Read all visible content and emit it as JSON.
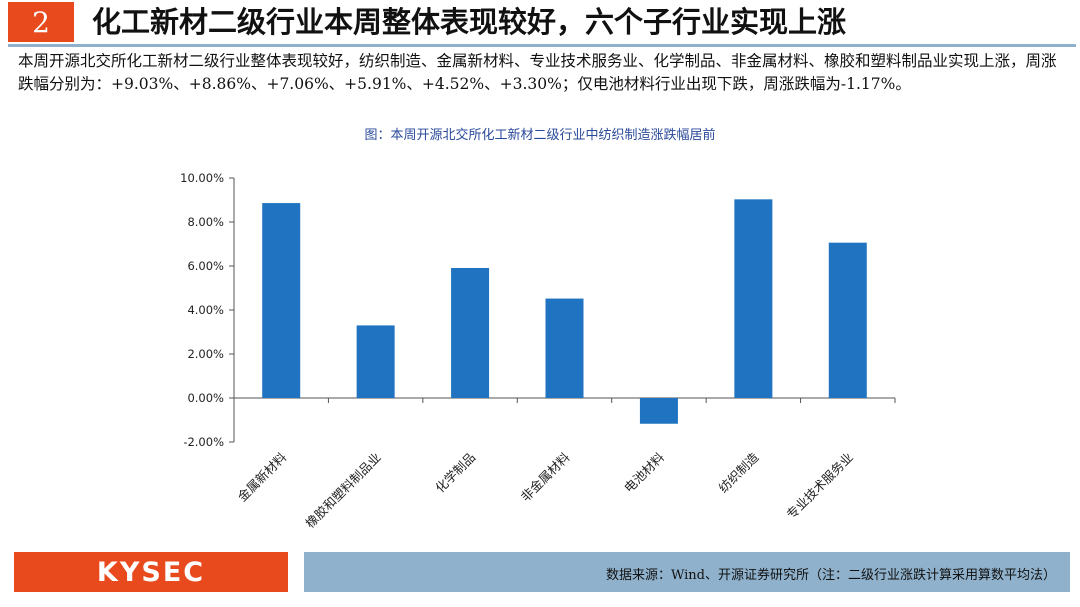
{
  "header": {
    "number": "2",
    "title": "化工新材二级行业本周整体表现较好，六个子行业实现上涨"
  },
  "summary": "本周开源北交所化工新材二级行业整体表现较好，纺织制造、金属新材料、专业技术服务业、化学制品、非金属材料、橡胶和塑料制品业实现上涨，周涨跌幅分别为：+9.03%、+8.86%、+7.06%、+5.91%、+4.52%、+3.30%；仅电池材料行业出现下跌，周涨跌幅为-1.17%。",
  "chart_data": {
    "type": "bar",
    "title": "图：本周开源北交所化工新材二级行业中纺织制造涨跌幅居前",
    "categories": [
      "金属新材料",
      "橡胶和塑料制品业",
      "化学制品",
      "非金属材料",
      "电池材料",
      "纺织制造",
      "专业技术服务业"
    ],
    "values": [
      8.86,
      3.3,
      5.91,
      4.52,
      -1.17,
      9.03,
      7.06
    ],
    "ylim": [
      -2,
      10
    ],
    "yticks": [
      -2,
      0,
      2,
      4,
      6,
      8,
      10
    ],
    "ytick_labels": [
      "-2.00%",
      "0.00%",
      "2.00%",
      "4.00%",
      "6.00%",
      "8.00%",
      "10.00%"
    ],
    "bar_color": "#1f73c0",
    "grid": false,
    "legend": "none"
  },
  "footer": {
    "logo": "KYSEC",
    "source": "数据来源：Wind、开源证券研究所（注：二级行业涨跌计算采用算数平均法）"
  },
  "colors": {
    "accent": "#e8491d",
    "band": "#8fb1cc",
    "chart_title": "#2a4a9a"
  }
}
